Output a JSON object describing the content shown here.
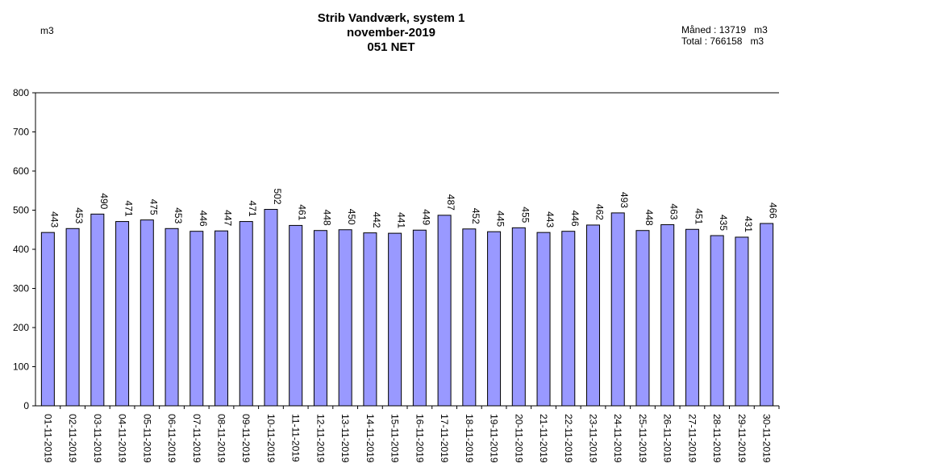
{
  "header": {
    "title_line1": "Strib Vandværk, system 1",
    "title_line2": "november-2019",
    "title_line3": "051 NET",
    "unit": "m3",
    "month_label": "Måned",
    "month_value": "13719",
    "month_unit": "m3",
    "total_label": "Total",
    "total_value": "766158",
    "total_unit": "m3"
  },
  "chart_data": {
    "type": "bar",
    "title": "Strib Vandværk, system 1",
    "subtitle": "november-2019 / 051 NET",
    "ylabel": "m3",
    "ylim": [
      0,
      800
    ],
    "yticks": [
      0,
      100,
      200,
      300,
      400,
      500,
      600,
      700,
      800
    ],
    "grid": false,
    "bar_color": "#9999ff",
    "categories": [
      "01-11-2019",
      "02-11-2019",
      "03-11-2019",
      "04-11-2019",
      "05-11-2019",
      "06-11-2019",
      "07-11-2019",
      "08-11-2019",
      "09-11-2019",
      "10-11-2019",
      "11-11-2019",
      "12-11-2019",
      "13-11-2019",
      "14-11-2019",
      "15-11-2019",
      "16-11-2019",
      "17-11-2019",
      "18-11-2019",
      "19-11-2019",
      "20-11-2019",
      "21-11-2019",
      "22-11-2019",
      "23-11-2019",
      "24-11-2019",
      "25-11-2019",
      "26-11-2019",
      "27-11-2019",
      "28-11-2019",
      "29-11-2019",
      "30-11-2019"
    ],
    "values": [
      443,
      453,
      490,
      471,
      475,
      453,
      446,
      447,
      471,
      502,
      461,
      448,
      450,
      442,
      441,
      449,
      487,
      452,
      445,
      455,
      443,
      446,
      462,
      493,
      448,
      463,
      451,
      435,
      431,
      466
    ]
  }
}
